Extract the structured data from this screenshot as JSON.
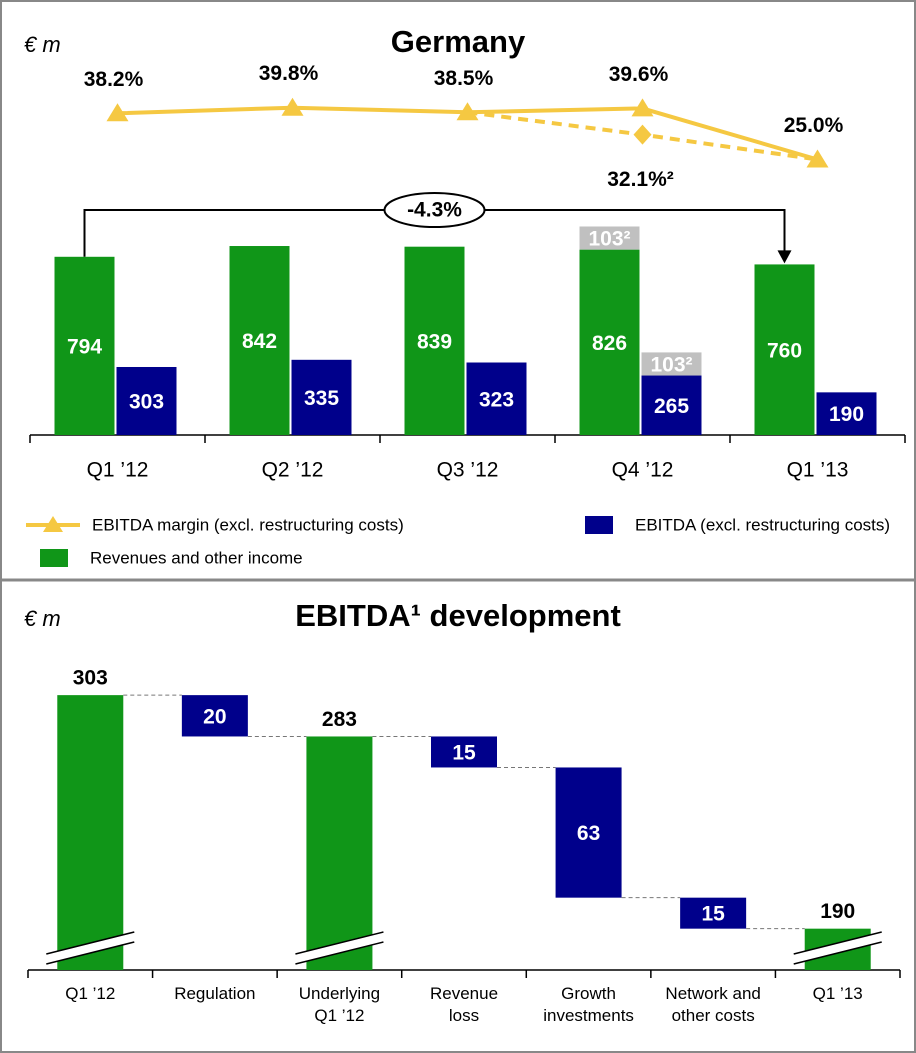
{
  "chart_data": [
    {
      "type": "bar",
      "title": "Germany",
      "unit": "€ m",
      "categories": [
        "Q1 ’12",
        "Q2 ’12",
        "Q3 ’12",
        "Q4 ’12",
        "Q1 ’13"
      ],
      "ylim": [
        0,
        900
      ],
      "y2lim": [
        22,
        42
      ],
      "series": [
        {
          "name": "Revenues and other income",
          "color": "#109618",
          "values": [
            794,
            842,
            839,
            826,
            760
          ]
        },
        {
          "name": "EBITDA (excl. restructuring costs)",
          "color": "#00008b",
          "values": [
            303,
            335,
            323,
            265,
            190
          ]
        },
        {
          "name": "EBITDA margin (excl. restructuring costs)",
          "color": "#f5c842",
          "axis": "y2",
          "marker": "triangle",
          "values": [
            38.2,
            39.8,
            38.5,
            39.6,
            25.0
          ],
          "value_labels": [
            "38.2%",
            "39.8%",
            "38.5%",
            "39.6%",
            "25.0%"
          ]
        },
        {
          "color": "#f5c842",
          "axis": "y2",
          "dash": true,
          "marker": "diamond",
          "values": [
            null,
            null,
            38.5,
            32.1,
            25.0
          ],
          "value_labels": [
            null,
            null,
            null,
            "32.1%²",
            null
          ]
        },
        {
          "color": "#c0c0c0",
          "on": 0,
          "values": [
            null,
            null,
            null,
            103,
            null
          ],
          "value_labels": [
            null,
            null,
            null,
            "103²",
            null
          ]
        },
        {
          "color": "#c0c0c0",
          "on": 1,
          "values": [
            null,
            null,
            null,
            103,
            null
          ],
          "value_labels": [
            null,
            null,
            null,
            "103²",
            null
          ]
        }
      ],
      "annotation": "-4.3%"
    },
    {
      "type": "waterfall",
      "title": "EBITDA¹ development",
      "unit": "€ m",
      "categories": [
        "Q1 ’12",
        "Regulation",
        "Underlying\nQ1 ’12",
        "Revenue\nloss",
        "Growth\ninvestments",
        "Network and\nother costs",
        "Q1 ’13"
      ],
      "measure": [
        "total",
        "relative",
        "total",
        "relative",
        "relative",
        "relative",
        "total"
      ],
      "values": [
        303,
        -20,
        283,
        -15,
        -63,
        -15,
        190
      ],
      "value_labels": [
        "303",
        "20",
        "283",
        "15",
        "63",
        "15",
        "190"
      ],
      "total_color": "#109618",
      "relative_color": "#00008b",
      "ylim": [
        170,
        320
      ],
      "broken_axis": true
    }
  ]
}
